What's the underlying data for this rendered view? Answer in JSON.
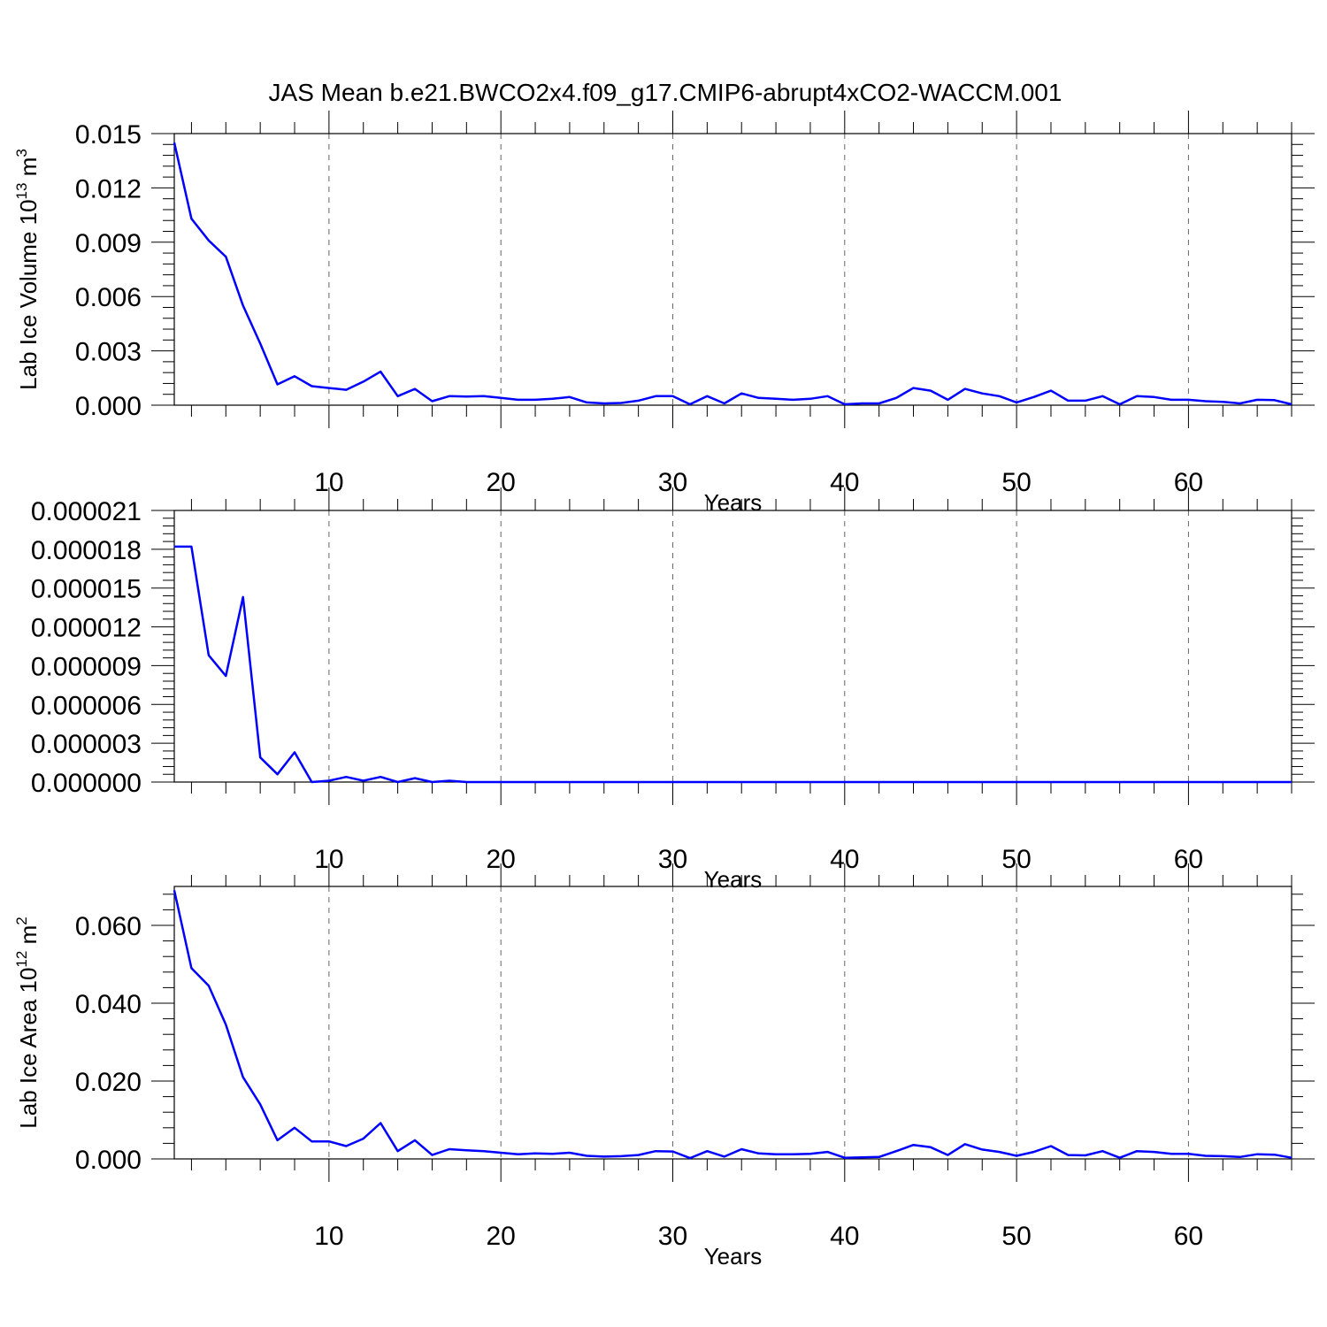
{
  "title": "JAS Mean b.e21.BWCO2x4.f09_g17.CMIP6-abrupt4xCO2-WACCM.001",
  "colors": {
    "series": "#0000ff",
    "axis": "#000000",
    "grid": "#666666",
    "background": "#ffffff"
  },
  "chart_data": [
    {
      "type": "line",
      "title": "",
      "xlabel": "Years",
      "ylabel": "Lab Ice Volume 10",
      "ylabel_exp": "13",
      "ylabel_unit": " m",
      "ylabel_unit_exp": "3",
      "xlim": [
        1,
        66
      ],
      "ylim": [
        0,
        0.015
      ],
      "grid": "vertical dashed at major x ticks",
      "xticks": [
        10,
        20,
        30,
        40,
        50,
        60
      ],
      "xtick_labels": [
        "10",
        "20",
        "30",
        "40",
        "50",
        "60"
      ],
      "yticks": [
        0,
        0.003,
        0.006,
        0.009,
        0.012,
        0.015
      ],
      "ytick_labels": [
        "0.000",
        "0.003",
        "0.006",
        "0.009",
        "0.012",
        "0.015"
      ],
      "series": [
        {
          "x": [
            1,
            2,
            3,
            4,
            5,
            6,
            7,
            8,
            9,
            10,
            11,
            12,
            13,
            14,
            15,
            16,
            17,
            18,
            19,
            20,
            21,
            22,
            23,
            24,
            25,
            26,
            27,
            28,
            29,
            30,
            31,
            32,
            33,
            34,
            35,
            36,
            37,
            38,
            39,
            40,
            41,
            42,
            43,
            44,
            45,
            46,
            47,
            48,
            49,
            50,
            51,
            52,
            53,
            54,
            55,
            56,
            57,
            58,
            59,
            60,
            61,
            62,
            63,
            64,
            65,
            66
          ],
          "values": [
            0.0145,
            0.0103,
            0.0091,
            0.0082,
            0.0055,
            0.0034,
            0.00115,
            0.0016,
            0.00105,
            0.00095,
            0.00085,
            0.0013,
            0.00185,
            0.0005,
            0.0009,
            0.00022,
            0.0005,
            0.00048,
            0.0005,
            0.0004,
            0.0003,
            0.0003,
            0.00035,
            0.00045,
            0.00015,
            0.0001,
            0.00012,
            0.00025,
            0.0005,
            0.0005,
            5e-05,
            0.0005,
            0.0001,
            0.00065,
            0.0004,
            0.00035,
            0.0003,
            0.00035,
            0.0005,
            5e-05,
            0.0001,
            0.0001,
            0.0004,
            0.00095,
            0.0008,
            0.0003,
            0.0009,
            0.00065,
            0.0005,
            0.00015,
            0.00045,
            0.0008,
            0.00025,
            0.00025,
            0.0005,
            5e-05,
            0.0005,
            0.00045,
            0.0003,
            0.0003,
            0.00022,
            0.00018,
            0.0001,
            0.0003,
            0.00028,
            5e-05
          ]
        }
      ]
    },
    {
      "type": "line",
      "title": "",
      "xlabel": "Years",
      "ylabel": "",
      "xlim": [
        1,
        66
      ],
      "ylim": [
        0,
        2.1e-05
      ],
      "grid": "vertical dashed at major x ticks",
      "xticks": [
        10,
        20,
        30,
        40,
        50,
        60
      ],
      "xtick_labels": [
        "10",
        "20",
        "30",
        "40",
        "50",
        "60"
      ],
      "yticks": [
        0,
        3e-06,
        6e-06,
        9e-06,
        1.2e-05,
        1.5e-05,
        1.8e-05,
        2.1e-05
      ],
      "ytick_labels": [
        "0.000000",
        "0.000003",
        "0.000006",
        "0.000009",
        "0.000012",
        "0.000015",
        "0.000018",
        "0.000021"
      ],
      "series": [
        {
          "x": [
            1,
            2,
            3,
            4,
            5,
            6,
            7,
            8,
            9,
            10,
            11,
            12,
            13,
            14,
            15,
            16,
            17,
            18,
            19,
            20,
            21,
            22,
            23,
            24,
            25,
            26,
            27,
            28,
            29,
            30,
            31,
            32,
            33,
            34,
            35,
            36,
            37,
            38,
            39,
            40,
            41,
            42,
            43,
            44,
            45,
            46,
            47,
            48,
            49,
            50,
            51,
            52,
            53,
            54,
            55,
            56,
            57,
            58,
            59,
            60,
            61,
            62,
            63,
            64,
            65,
            66
          ],
          "values": [
            1.82e-05,
            1.82e-05,
            9.8e-06,
            8.2e-06,
            1.43e-05,
            1.9e-06,
            6e-07,
            2.3e-06,
            0.0,
            1e-07,
            4e-07,
            1e-07,
            4e-07,
            0.0,
            3e-07,
            0.0,
            1e-07,
            0.0,
            0.0,
            0.0,
            0.0,
            0.0,
            0.0,
            0.0,
            0.0,
            0.0,
            0.0,
            0.0,
            0.0,
            0.0,
            0.0,
            0.0,
            0.0,
            0.0,
            0.0,
            0.0,
            0.0,
            0.0,
            0.0,
            0.0,
            0.0,
            0.0,
            0.0,
            0.0,
            0.0,
            0.0,
            0.0,
            0.0,
            0.0,
            0.0,
            0.0,
            0.0,
            0.0,
            0.0,
            0.0,
            0.0,
            0.0,
            0.0,
            0.0,
            0.0,
            0.0,
            0.0,
            0.0,
            0.0,
            0.0,
            0.0
          ]
        }
      ]
    },
    {
      "type": "line",
      "title": "",
      "xlabel": "Years",
      "ylabel": "Lab Ice Area 10",
      "ylabel_exp": "12",
      "ylabel_unit": " m",
      "ylabel_unit_exp": "2",
      "xlim": [
        1,
        66
      ],
      "ylim": [
        0,
        0.07
      ],
      "grid": "vertical dashed at major x ticks",
      "xticks": [
        10,
        20,
        30,
        40,
        50,
        60
      ],
      "xtick_labels": [
        "10",
        "20",
        "30",
        "40",
        "50",
        "60"
      ],
      "yticks": [
        0,
        0.02,
        0.04,
        0.06
      ],
      "ytick_labels": [
        "0.000",
        "0.020",
        "0.040",
        "0.060"
      ],
      "series": [
        {
          "x": [
            1,
            2,
            3,
            4,
            5,
            6,
            7,
            8,
            9,
            10,
            11,
            12,
            13,
            14,
            15,
            16,
            17,
            18,
            19,
            20,
            21,
            22,
            23,
            24,
            25,
            26,
            27,
            28,
            29,
            30,
            31,
            32,
            33,
            34,
            35,
            36,
            37,
            38,
            39,
            40,
            41,
            42,
            43,
            44,
            45,
            46,
            47,
            48,
            49,
            50,
            51,
            52,
            53,
            54,
            55,
            56,
            57,
            58,
            59,
            60,
            61,
            62,
            63,
            64,
            65,
            66
          ],
          "values": [
            0.069,
            0.049,
            0.0445,
            0.0345,
            0.021,
            0.014,
            0.0048,
            0.008,
            0.0045,
            0.0045,
            0.0033,
            0.0052,
            0.0092,
            0.002,
            0.0048,
            0.001,
            0.0025,
            0.0022,
            0.002,
            0.0016,
            0.0012,
            0.0014,
            0.0013,
            0.0016,
            0.0008,
            0.0006,
            0.0007,
            0.001,
            0.002,
            0.0019,
            0.0002,
            0.002,
            0.0006,
            0.0025,
            0.0014,
            0.0012,
            0.0012,
            0.0013,
            0.0018,
            0.0003,
            0.0004,
            0.0005,
            0.002,
            0.0036,
            0.003,
            0.001,
            0.0038,
            0.0024,
            0.0018,
            0.0008,
            0.0018,
            0.0033,
            0.001,
            0.0009,
            0.002,
            0.0003,
            0.002,
            0.0018,
            0.0013,
            0.0013,
            0.0008,
            0.0007,
            0.0005,
            0.0012,
            0.0011,
            0.0003
          ]
        }
      ]
    }
  ]
}
